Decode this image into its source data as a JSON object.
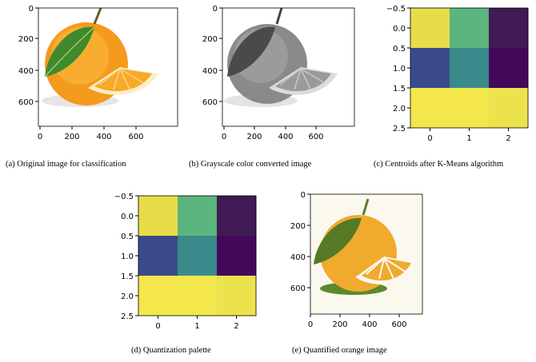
{
  "panels": {
    "a": {
      "caption": "(a) Original image for classification",
      "xticks": [
        "0",
        "200",
        "400",
        "600"
      ],
      "yticks": [
        "0",
        "200",
        "400",
        "600"
      ]
    },
    "b": {
      "caption": "(b) Grayscale color converted image",
      "xticks": [
        "0",
        "200",
        "400",
        "600"
      ],
      "yticks": [
        "0",
        "200",
        "400",
        "600"
      ]
    },
    "c": {
      "caption": "(c) Centroids after K-Means algorithm",
      "xticks": [
        "0",
        "1",
        "2"
      ],
      "yticks": [
        "−0.5",
        "0.0",
        "0.5",
        "1.0",
        "1.5",
        "2.0",
        "2.5"
      ]
    },
    "d": {
      "caption": "(d) Quantization palette",
      "xticks": [
        "0",
        "1",
        "2"
      ],
      "yticks": [
        "−0.5",
        "0.0",
        "0.5",
        "1.0",
        "1.5",
        "2.0",
        "2.5"
      ]
    },
    "e": {
      "caption": "(e) Quantified orange image",
      "xticks": [
        "0",
        "200",
        "400",
        "600"
      ],
      "yticks": [
        "0",
        "200",
        "400",
        "600"
      ]
    }
  },
  "chart_data": [
    {
      "panel": "c",
      "type": "heatmap",
      "rows": [
        0,
        1,
        2
      ],
      "cols": [
        0,
        1,
        2
      ],
      "colors": [
        [
          "#e8dd49",
          "#5bb57e",
          "#3f1a55"
        ],
        [
          "#3b4a8a",
          "#3a8a8c",
          "#44085a"
        ],
        [
          "#f4e74c",
          "#f4e74c",
          "#ebe24c"
        ]
      ],
      "xlim": [
        -0.5,
        2.5
      ],
      "ylim": [
        2.5,
        -0.5
      ]
    },
    {
      "panel": "d",
      "type": "heatmap",
      "rows": [
        0,
        1,
        2
      ],
      "cols": [
        0,
        1,
        2
      ],
      "colors": [
        [
          "#e8dd49",
          "#5bb57e",
          "#3f1a55"
        ],
        [
          "#3b4a8a",
          "#3a8a8c",
          "#44085a"
        ],
        [
          "#f4e74c",
          "#f4e74c",
          "#ebe24c"
        ]
      ],
      "xlim": [
        -0.5,
        2.5
      ],
      "ylim": [
        2.5,
        -0.5
      ]
    }
  ]
}
